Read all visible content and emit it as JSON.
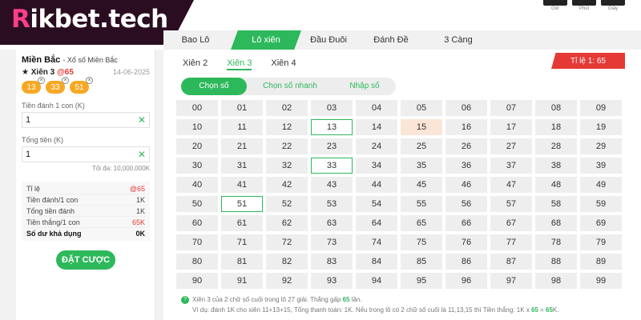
{
  "brand": {
    "logo_first": "R",
    "logo_rest": "ikbet.tech"
  },
  "timer": {
    "labels": [
      "Giờ",
      "Phút",
      "Giây"
    ]
  },
  "main_tabs": [
    "Bao Lô",
    "Lô xiên",
    "Đầu Đuôi",
    "Đánh Đề",
    "3 Càng"
  ],
  "active_main_tab": "Lô xiên",
  "sub_tabs": [
    "Xiên 2",
    "Xiên 3",
    "Xiên 4"
  ],
  "active_sub_tab": "Xiên 3",
  "rate_badge": "Tỉ lệ 1: 65",
  "modes": [
    "Chọn số",
    "Chọn số nhanh",
    "Nhập số"
  ],
  "active_mode": "Chọn số",
  "numbers_selected": [
    "13",
    "33",
    "51"
  ],
  "numbers_highlighted": [
    "15"
  ],
  "left_panel": {
    "region": "Miền Bắc",
    "region_sub": "- Xổ số Miền Bắc",
    "bet_prefix": "★",
    "bet_name": "Xiên 3",
    "bet_odds": "@65",
    "date": "14-06-2025",
    "chips": [
      "13",
      "33",
      "51"
    ],
    "chip_remove": "×",
    "stake_label": "Tiền đánh 1 con (K)",
    "stake_value": "1",
    "total_label": "Tổng tiền (K)",
    "total_value": "1",
    "clear_glyph": "✕",
    "max_note": "Tối đa: 10,000,000K",
    "summary": [
      {
        "label": "Tỉ lệ",
        "value": "@65",
        "red": true
      },
      {
        "label": "Tiền đánh/1 con",
        "value": "1K",
        "red": false
      },
      {
        "label": "Tổng tiền đánh",
        "value": "1K",
        "red": false
      },
      {
        "label": "Tiền thắng/1 con",
        "value": "65K",
        "red": true
      },
      {
        "label": "Số dư khả dụng",
        "value": "0K",
        "red": false
      }
    ],
    "place_bet": "ĐẶT CƯỢC"
  },
  "note": {
    "icon": "?",
    "line1_a": "Xiên 3 của 2 chữ số cuối trong lô 27 giải. Thắng gấp ",
    "line1_b": "65",
    "line1_c": " lần.",
    "line2_a": "Ví dụ: đánh 1K cho xiên 11+13+15, Tổng thanh toán: 1K. Nếu trong lô có 2 chữ số cuối là 11,13,15 thì Tiền thắng: 1K x ",
    "line2_b": "65",
    "line2_c": " = ",
    "line2_d": "65",
    "line2_e": "K.",
    "accent": "#2eb85c"
  }
}
